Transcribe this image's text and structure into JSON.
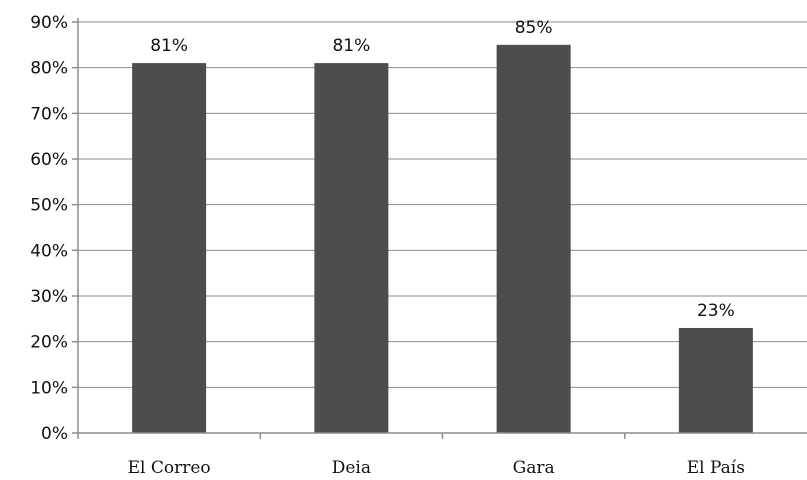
{
  "chart_data": {
    "type": "bar",
    "categories": [
      "El Correo",
      "Deia",
      "Gara",
      "El País"
    ],
    "values": [
      81,
      81,
      85,
      23
    ],
    "data_labels": [
      "81%",
      "81%",
      "85%",
      "23%"
    ],
    "y_ticks": [
      "0%",
      "10%",
      "20%",
      "30%",
      "40%",
      "50%",
      "60%",
      "70%",
      "80%",
      "90%"
    ],
    "ylim": [
      0,
      90
    ],
    "y_step": 10,
    "grid": true,
    "bar_color": "#4d4d4d",
    "title": "",
    "xlabel": "",
    "ylabel": ""
  }
}
